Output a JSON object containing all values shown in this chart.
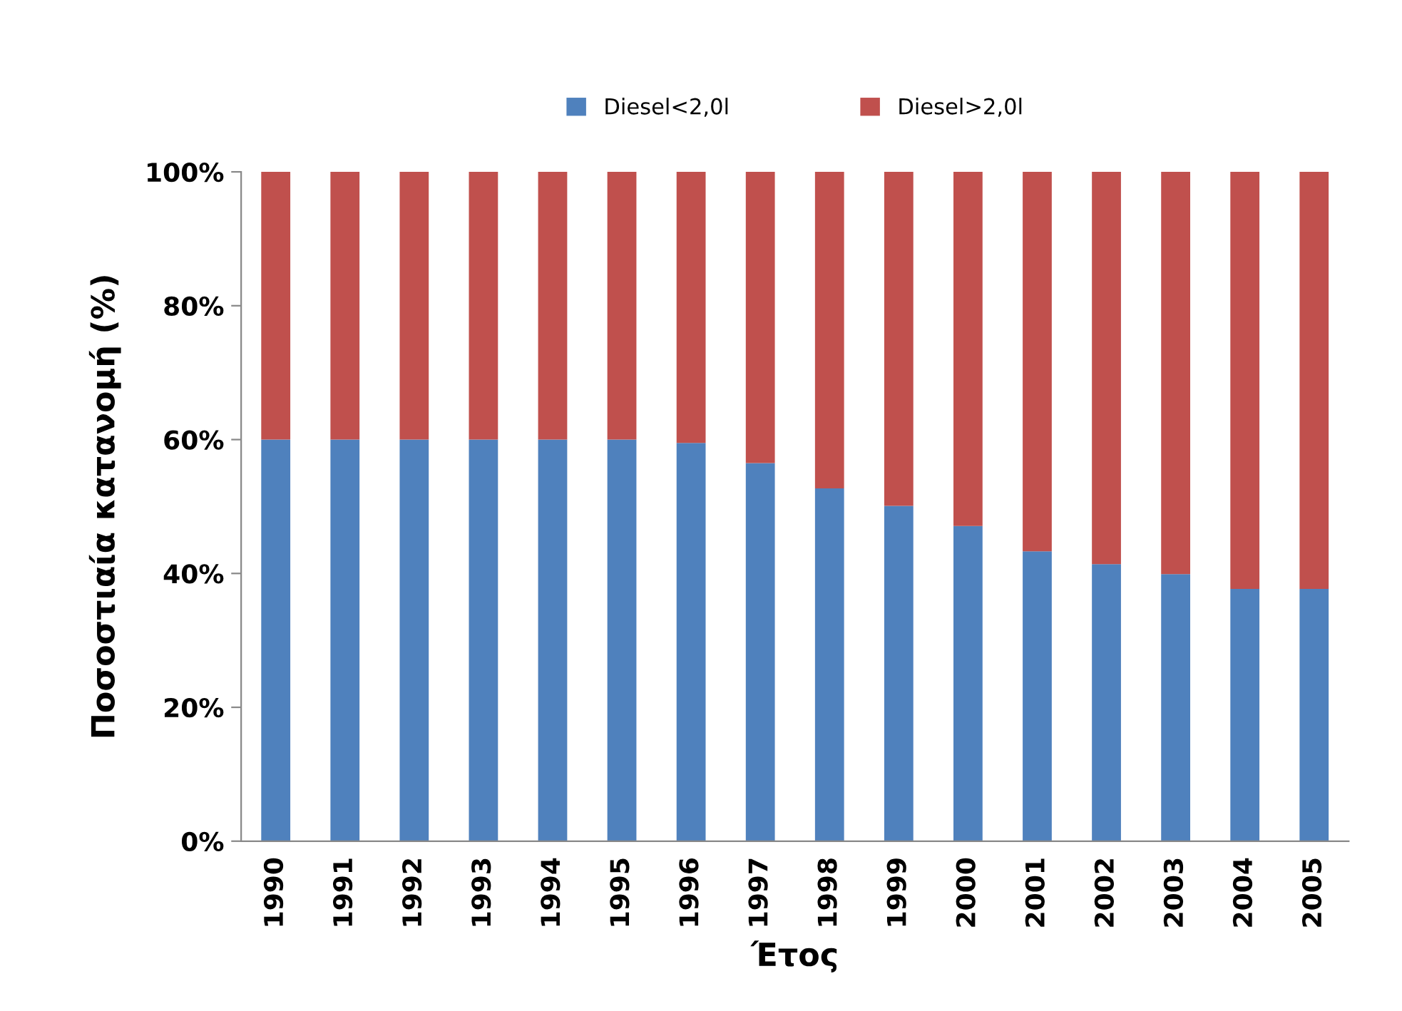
{
  "chart_data": {
    "type": "bar",
    "stacked": true,
    "xlabel": "Έτος",
    "ylabel": "Ποσοστιαία κατανομή (%)",
    "categories": [
      "1990",
      "1991",
      "1992",
      "1993",
      "1994",
      "1995",
      "1996",
      "1997",
      "1998",
      "1999",
      "2000",
      "2001",
      "2002",
      "2003",
      "2004",
      "2005"
    ],
    "series": [
      {
        "name": "Diesel<2,0l",
        "color": "#4f81bd",
        "values": [
          60,
          60,
          60,
          60,
          60,
          60,
          59.5,
          56.5,
          52.7,
          50.1,
          47.1,
          43.3,
          41.4,
          39.9,
          37.7,
          37.7
        ]
      },
      {
        "name": "Diesel>2,0l",
        "color": "#c0504d",
        "values": [
          40,
          40,
          40,
          40,
          40,
          40,
          40.5,
          43.5,
          47.3,
          49.9,
          52.9,
          56.7,
          58.6,
          60.1,
          62.3,
          62.3
        ]
      }
    ],
    "ylim": [
      0,
      100
    ],
    "yticks": [
      {
        "value": 0,
        "label": "0%"
      },
      {
        "value": 20,
        "label": "20%"
      },
      {
        "value": 40,
        "label": "40%"
      },
      {
        "value": 60,
        "label": "60%"
      },
      {
        "value": 80,
        "label": "80%"
      },
      {
        "value": 100,
        "label": "100%"
      }
    ],
    "legend": "top",
    "grid": false
  }
}
